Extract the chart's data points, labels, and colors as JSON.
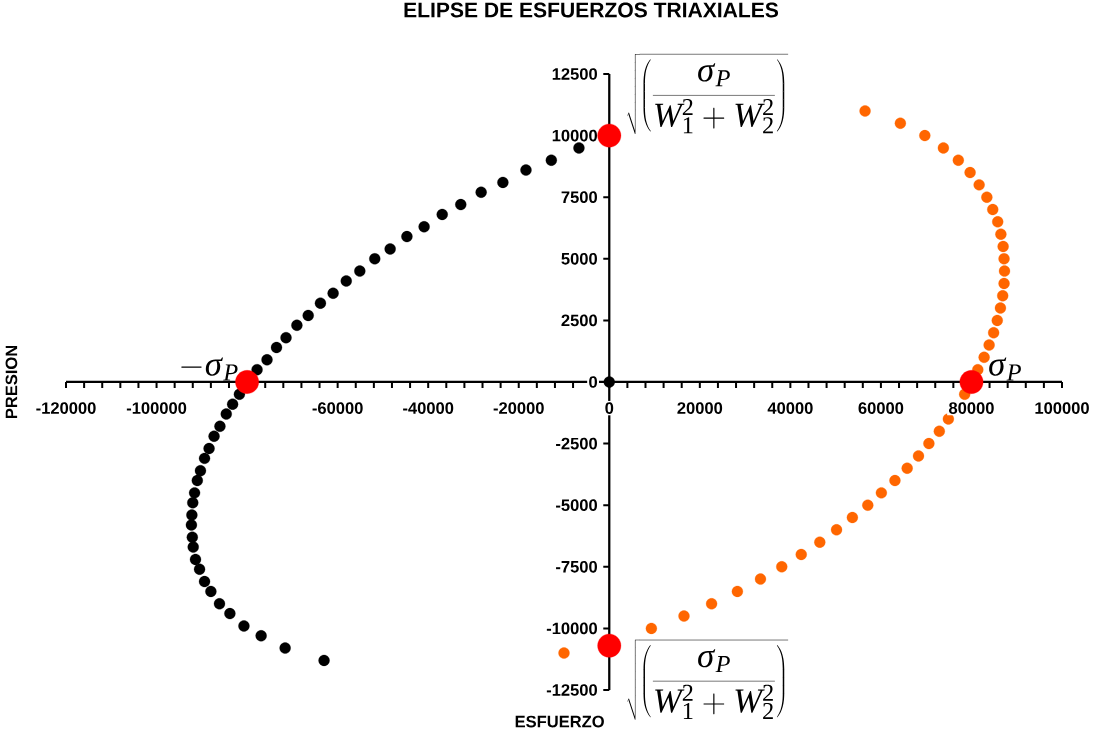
{
  "chart_data": {
    "type": "scatter",
    "title": "ELIPSE DE ESFUERZOS TRIAXIALES",
    "xlabel": "ESFUERZO",
    "ylabel": "PRESION",
    "xlim": [
      -120000,
      100000
    ],
    "ylim": [
      -12500,
      12500
    ],
    "xticks": [
      -120000,
      -100000,
      {
        "value": -80000,
        "label": null
      },
      -60000,
      -40000,
      -20000,
      0,
      20000,
      40000,
      60000,
      80000,
      100000
    ],
    "yticks": [
      -12500,
      -10000,
      -7500,
      -5000,
      -2500,
      0,
      2500,
      5000,
      7500,
      10000,
      12500
    ],
    "marker": "circle",
    "series": [
      {
        "color": "#000000",
        "x": [
          -63000,
          -71600,
          -76900,
          -80700,
          -83800,
          -86100,
          -88000,
          -89400,
          -90500,
          -91400,
          -91900,
          -92100,
          -92300,
          -92200,
          -92000,
          -91600,
          -91000,
          -90300,
          -89400,
          -88400,
          -87300,
          -86000,
          -84600,
          -83200,
          -81700,
          -77800,
          -75600,
          -73500,
          -71400,
          -69000,
          -66500,
          -63800,
          -61000,
          -58100,
          -55100,
          -51800,
          -48400,
          -44700,
          -40900,
          -36900,
          -32800,
          -28300,
          -23500,
          -18400,
          -12800,
          -6700
        ],
        "values": [
          -11300,
          -10800,
          -10300,
          -9900,
          -9400,
          -9000,
          -8500,
          -8100,
          -7600,
          -7200,
          -6700,
          -6300,
          -5800,
          -5400,
          -4900,
          -4500,
          -4000,
          -3600,
          -3100,
          -2700,
          -2200,
          -1800,
          -1300,
          -900,
          -500,
          500,
          900,
          1400,
          1800,
          2300,
          2700,
          3200,
          3600,
          4100,
          4500,
          5000,
          5400,
          5900,
          6300,
          6800,
          7200,
          7700,
          8100,
          8600,
          9000,
          9500
        ]
      },
      {
        "color": "#ff6600",
        "x": [
          56500,
          64300,
          69700,
          73800,
          77100,
          79700,
          81700,
          83400,
          84700,
          85800,
          86500,
          87000,
          87200,
          87300,
          87200,
          86900,
          86400,
          85700,
          84900,
          83900,
          82800,
          81400,
          78500,
          74900,
          72900,
          70600,
          68300,
          65800,
          63100,
          60100,
          57100,
          53700,
          50200,
          46500,
          42400,
          38100,
          33400,
          28300,
          22600,
          16500,
          9300,
          -10000
        ],
        "values": [
          11000,
          10500,
          10000,
          9500,
          9000,
          8500,
          8000,
          7500,
          7000,
          6500,
          6000,
          5500,
          5000,
          4500,
          4000,
          3500,
          3000,
          2500,
          2000,
          1500,
          1000,
          500,
          -500,
          -1500,
          -2000,
          -2500,
          -3000,
          -3500,
          -4000,
          -4500,
          -5000,
          -5500,
          -6000,
          -6500,
          -7000,
          -7500,
          -8000,
          -8500,
          -9000,
          -9500,
          -10000,
          -11000
        ]
      },
      {
        "color": "#000000",
        "x": [
          0
        ],
        "values": [
          0
        ]
      },
      {
        "color": "#ff0000",
        "x": [
          0,
          0,
          -80000,
          80000
        ],
        "values": [
          10000,
          -10700,
          0,
          0
        ]
      }
    ],
    "annotations": [
      {
        "text": "\\sqrt{\\left(\\frac{\\sigma_P}{W_1^2+W_2^2}\\right)}",
        "x": 0,
        "y": 10000
      },
      {
        "text": "\\sqrt{\\left(\\frac{\\sigma_P}{W_1^2+W_2^2}\\right)}",
        "x": 0,
        "y": -10700
      },
      {
        "text": "-\\sigma_P",
        "x": -80000,
        "y": 0
      },
      {
        "text": "\\sigma_P",
        "x": 80000,
        "y": 0
      }
    ]
  }
}
